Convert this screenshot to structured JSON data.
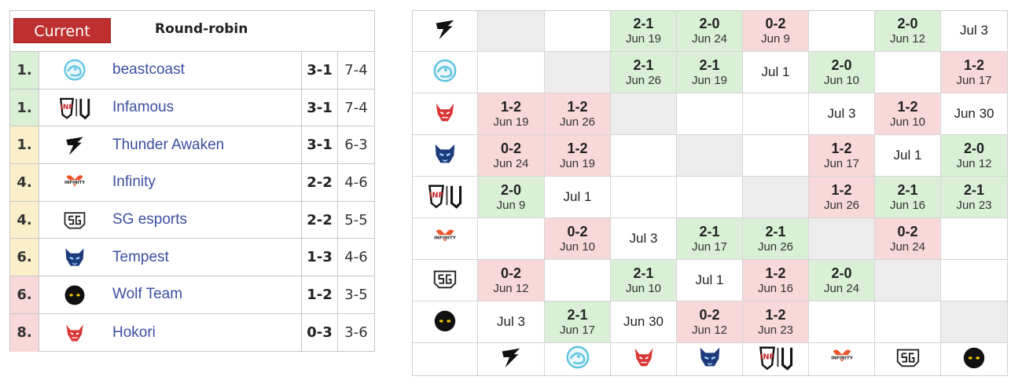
{
  "standings": {
    "current_label": "Current",
    "title": "Round-robin",
    "rows": [
      {
        "rank": "1.",
        "team": "beastcoast",
        "record": "3-1",
        "games": "7-4",
        "tier": "g",
        "logo": "beastcoast-logo"
      },
      {
        "rank": "1.",
        "team": "Infamous",
        "record": "3-1",
        "games": "7-4",
        "tier": "g",
        "logo": "infamous-logo"
      },
      {
        "rank": "1.",
        "team": "Thunder Awaken",
        "record": "3-1",
        "games": "6-3",
        "tier": "y",
        "logo": "thunder-awaken-logo"
      },
      {
        "rank": "4.",
        "team": "Infinity",
        "record": "2-2",
        "games": "4-6",
        "tier": "y",
        "logo": "infinity-logo"
      },
      {
        "rank": "4.",
        "team": "SG esports",
        "record": "2-2",
        "games": "5-5",
        "tier": "y",
        "logo": "sg-esports-logo"
      },
      {
        "rank": "6.",
        "team": "Tempest",
        "record": "1-3",
        "games": "4-6",
        "tier": "y",
        "logo": "tempest-logo"
      },
      {
        "rank": "6.",
        "team": "Wolf Team",
        "record": "1-2",
        "games": "3-5",
        "tier": "p",
        "logo": "wolf-team-logo"
      },
      {
        "rank": "8.",
        "team": "Hokori",
        "record": "0-3",
        "games": "3-6",
        "tier": "p",
        "logo": "hokori-logo"
      }
    ]
  },
  "grid": {
    "row_logos": [
      "thunder-awaken-logo",
      "beastcoast-logo",
      "hokori-logo",
      "tempest-logo",
      "infamous-logo",
      "infinity-logo",
      "sg-esports-logo",
      "wolf-team-logo"
    ],
    "col_logos": [
      "thunder-awaken-logo",
      "beastcoast-logo",
      "hokori-logo",
      "tempest-logo",
      "infamous-logo",
      "infinity-logo",
      "sg-esports-logo",
      "wolf-team-logo"
    ],
    "rows": [
      [
        {
          "t": "gray"
        },
        {
          "t": "wh"
        },
        {
          "t": "win",
          "s": "2-1",
          "d": "Jun 19"
        },
        {
          "t": "win",
          "s": "2-0",
          "d": "Jun 24"
        },
        {
          "t": "loss",
          "s": "0-2",
          "d": "Jun 9"
        },
        {
          "t": "wh"
        },
        {
          "t": "win",
          "s": "2-0",
          "d": "Jun 12"
        },
        {
          "t": "wh",
          "d": "Jul 3"
        }
      ],
      [
        {
          "t": "wh"
        },
        {
          "t": "gray"
        },
        {
          "t": "win",
          "s": "2-1",
          "d": "Jun 26"
        },
        {
          "t": "win",
          "s": "2-1",
          "d": "Jun 19"
        },
        {
          "t": "wh",
          "d": "Jul 1"
        },
        {
          "t": "win",
          "s": "2-0",
          "d": "Jun 10"
        },
        {
          "t": "wh"
        },
        {
          "t": "loss",
          "s": "1-2",
          "d": "Jun 17"
        }
      ],
      [
        {
          "t": "loss",
          "s": "1-2",
          "d": "Jun 19"
        },
        {
          "t": "loss",
          "s": "1-2",
          "d": "Jun 26"
        },
        {
          "t": "gray"
        },
        {
          "t": "wh"
        },
        {
          "t": "wh"
        },
        {
          "t": "wh",
          "d": "Jul 3"
        },
        {
          "t": "loss",
          "s": "1-2",
          "d": "Jun 10"
        },
        {
          "t": "wh",
          "d": "Jun 30"
        }
      ],
      [
        {
          "t": "loss",
          "s": "0-2",
          "d": "Jun 24"
        },
        {
          "t": "loss",
          "s": "1-2",
          "d": "Jun 19"
        },
        {
          "t": "wh"
        },
        {
          "t": "gray"
        },
        {
          "t": "wh"
        },
        {
          "t": "loss",
          "s": "1-2",
          "d": "Jun 17"
        },
        {
          "t": "wh",
          "d": "Jul 1"
        },
        {
          "t": "win",
          "s": "2-0",
          "d": "Jun 12"
        }
      ],
      [
        {
          "t": "win",
          "s": "2-0",
          "d": "Jun 9"
        },
        {
          "t": "wh",
          "d": "Jul 1"
        },
        {
          "t": "wh"
        },
        {
          "t": "wh"
        },
        {
          "t": "gray"
        },
        {
          "t": "loss",
          "s": "1-2",
          "d": "Jun 26"
        },
        {
          "t": "win",
          "s": "2-1",
          "d": "Jun 16"
        },
        {
          "t": "win",
          "s": "2-1",
          "d": "Jun 23"
        }
      ],
      [
        {
          "t": "wh"
        },
        {
          "t": "loss",
          "s": "0-2",
          "d": "Jun 10"
        },
        {
          "t": "wh",
          "d": "Jul 3"
        },
        {
          "t": "win",
          "s": "2-1",
          "d": "Jun 17"
        },
        {
          "t": "win",
          "s": "2-1",
          "d": "Jun 26"
        },
        {
          "t": "gray"
        },
        {
          "t": "loss",
          "s": "0-2",
          "d": "Jun 24"
        },
        {
          "t": "wh"
        }
      ],
      [
        {
          "t": "loss",
          "s": "0-2",
          "d": "Jun 12"
        },
        {
          "t": "wh"
        },
        {
          "t": "win",
          "s": "2-1",
          "d": "Jun 10"
        },
        {
          "t": "wh",
          "d": "Jul 1"
        },
        {
          "t": "loss",
          "s": "1-2",
          "d": "Jun 16"
        },
        {
          "t": "win",
          "s": "2-0",
          "d": "Jun 24"
        },
        {
          "t": "gray"
        },
        {
          "t": "wh"
        }
      ],
      [
        {
          "t": "wh",
          "d": "Jul 3"
        },
        {
          "t": "win",
          "s": "2-1",
          "d": "Jun 17"
        },
        {
          "t": "wh",
          "d": "Jun 30"
        },
        {
          "t": "loss",
          "s": "0-2",
          "d": "Jun 12"
        },
        {
          "t": "loss",
          "s": "1-2",
          "d": "Jun 23"
        },
        {
          "t": "wh"
        },
        {
          "t": "wh"
        },
        {
          "t": "gray"
        }
      ]
    ]
  },
  "colors": {
    "win": "#d9f0d6",
    "loss": "#f8d8d8",
    "self": "#ececec",
    "current": "#be2f2f",
    "link": "#3a4fa0"
  }
}
